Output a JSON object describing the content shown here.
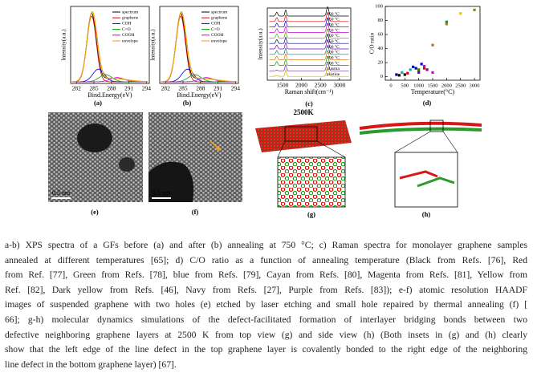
{
  "figure": {
    "a": {
      "label": "(a)",
      "ylabel": "Intensity(a.u.)",
      "xlabel": "Bind.Energy(eV)",
      "xlim": [
        281,
        294.5
      ],
      "xticks": [
        282,
        285,
        288,
        291,
        294
      ],
      "legend": [
        "spectrum",
        "graphene",
        "COH",
        "C=O",
        "COOH",
        "envelope"
      ]
    },
    "b": {
      "label": "(b)",
      "ylabel": "Intensity(a.u.)",
      "xlabel": "Bind.Energy(eV)",
      "xlim": [
        281,
        294.5
      ],
      "xticks": [
        282,
        285,
        288,
        291,
        294
      ],
      "legend": [
        "spectrum",
        "graphene",
        "COH",
        "C=O",
        "COOH",
        "envelope"
      ]
    },
    "c": {
      "label": "(c)",
      "ylabel": "Intensity(a.u.)",
      "xlabel": "Raman shift(cm⁻¹)",
      "xlim": [
        1100,
        3300
      ],
      "xticks": [
        1500,
        2000,
        2500,
        3000
      ],
      "traces": [
        {
          "label": "900 °C",
          "color": "#000000"
        },
        {
          "label": "850 °C",
          "color": "#e00000"
        },
        {
          "label": "800 °C",
          "color": "#0000e0"
        },
        {
          "label": "750 °C",
          "color": "#d000d0"
        },
        {
          "label": "700 °C",
          "color": "#6a8a00"
        },
        {
          "label": "650 °C",
          "color": "#000080"
        },
        {
          "label": "600 °C",
          "color": "#8000a0"
        },
        {
          "label": "500 °C",
          "color": "#008080"
        },
        {
          "label": "400 °C",
          "color": "#e07000"
        },
        {
          "label": "300 °C",
          "color": "#00a000"
        },
        {
          "label": "plasma",
          "color": "#7030a0"
        },
        {
          "label": "pristine",
          "color": "#d0b000"
        }
      ]
    },
    "d": {
      "type": "scatter",
      "label": "(d)",
      "ylabel": "C/O ratio",
      "xlabel": "Temperature(°C)",
      "xlim": [
        -200,
        3200
      ],
      "ylim": [
        -5,
        100
      ],
      "xticks": [
        0,
        500,
        1000,
        1500,
        2000,
        2500,
        3000
      ],
      "yticks": [
        0,
        20,
        40,
        60,
        80,
        100
      ],
      "series": [
        {
          "color": "#000000",
          "x": [
            300,
            500
          ],
          "y": [
            2,
            3
          ]
        },
        {
          "color": "#e00000",
          "x": [
            600,
            1000,
            1200
          ],
          "y": [
            5,
            8,
            12
          ]
        },
        {
          "color": "#00a000",
          "x": [
            1000,
            2000
          ],
          "y": [
            10,
            78
          ]
        },
        {
          "color": "#0000e0",
          "x": [
            800,
            1100
          ],
          "y": [
            14,
            18
          ]
        },
        {
          "color": "#00b0c0",
          "x": [
            400,
            700
          ],
          "y": [
            6,
            10
          ]
        },
        {
          "color": "#d000d0",
          "x": [
            1200,
            1500
          ],
          "y": [
            15,
            6
          ]
        },
        {
          "color": "#e0d000",
          "x": [
            2500
          ],
          "y": [
            90
          ]
        },
        {
          "color": "#a08000",
          "x": [
            1500,
            2000,
            3000
          ],
          "y": [
            45,
            75,
            95
          ]
        },
        {
          "color": "#000080",
          "x": [
            200,
            900
          ],
          "y": [
            3,
            12
          ]
        },
        {
          "color": "#8000a0",
          "x": [
            1000,
            1300
          ],
          "y": [
            6,
            10
          ]
        }
      ]
    },
    "e": {
      "label": "(e)",
      "scale": "0.5 nm"
    },
    "f": {
      "label": "(f)",
      "scale": "0.5 nm"
    },
    "g": {
      "label": "(g)",
      "title": "2500K"
    },
    "h": {
      "label": "(h)"
    }
  },
  "caption": {
    "lines": [
      "a-b) XPS spectra of a GFs before (a) and after (b) annealing at 750 °C; c) Raman spectra for monolayer graphene samples",
      "annealed at different temperatures [65]; d) C/O ratio as a function of annealing temperature (Black from Refs. [76], Red",
      "from Ref. [77], Green from Refs. [78], blue from Refs. [79], Cayan from Refs. [80], Magenta from Refs. [81], Yellow from",
      "Ref. [82], Dark yellow from Refs. [46], Navy from Refs. [27], Purple from Refs. [83]); e-f) atomic resolution HAADF",
      "images of suspended graphene with two holes (e) etched by laser etching and small hole repaired by thermal annealing (f) [",
      "66]; g-h) molecular dynamics simulations of the defect-facilitated formation of interlayer bridging bonds between two",
      "defective neighboring graphene layers at 2500 K from top view (g) and side view (h) (Both insets in (g) and (h) clearly",
      "show that the left edge of the line defect in the top graphene layer is covalently bonded to the right edge of the neighboring",
      "line defect in the bottom graphene layer) [67]."
    ]
  }
}
